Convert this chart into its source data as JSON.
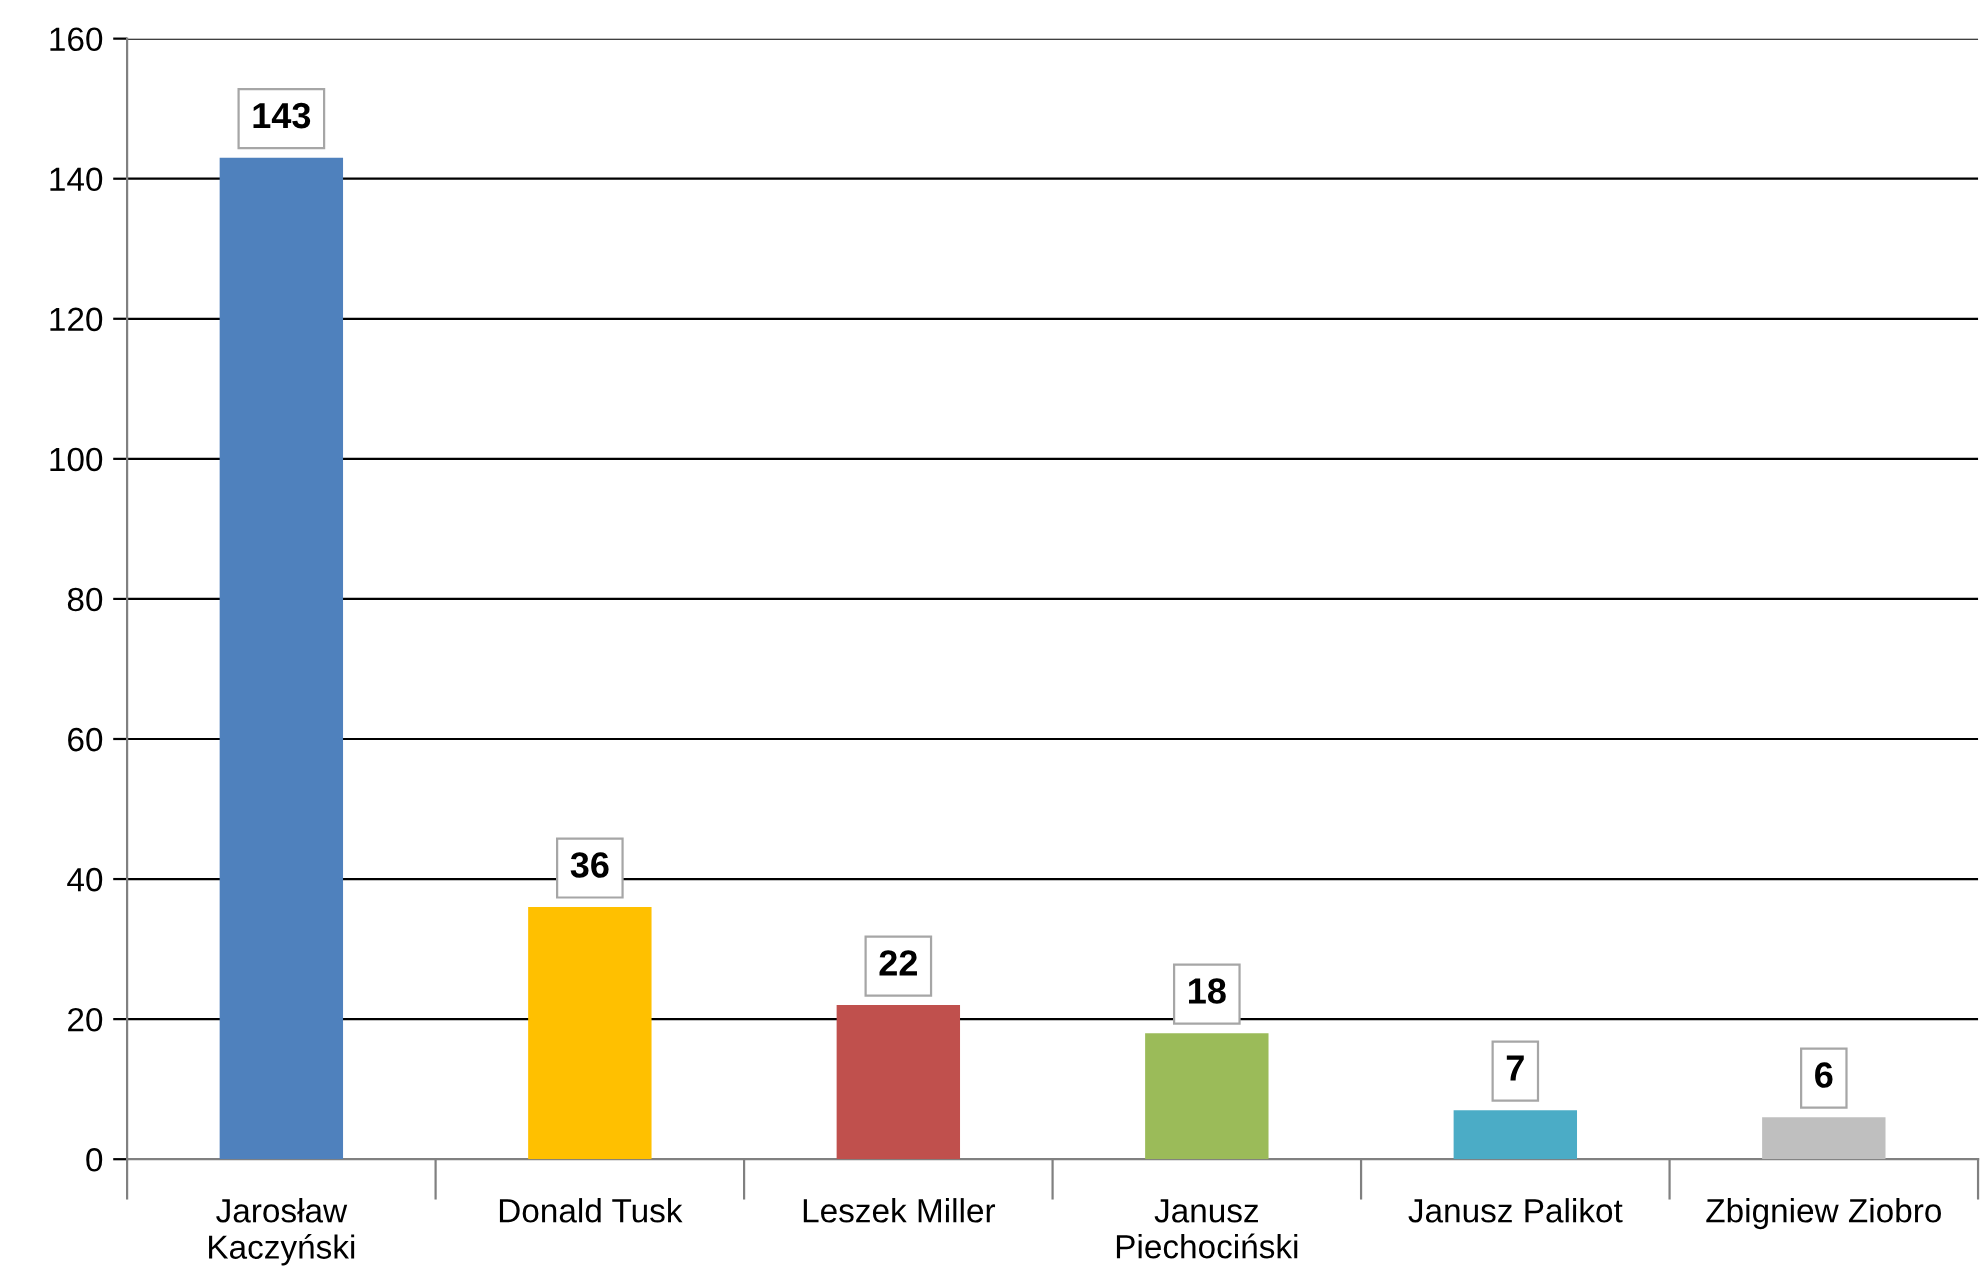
{
  "chart_data": {
    "type": "bar",
    "categories": [
      "Jarosław\nKaczyński",
      "Donald Tusk",
      "Leszek Miller",
      "Janusz\nPiechociński",
      "Janusz Palikot",
      "Zbigniew Ziobro"
    ],
    "values": [
      143,
      36,
      22,
      18,
      7,
      6
    ],
    "colors": [
      "#4f81bd",
      "#ffc000",
      "#c0504d",
      "#9bbb59",
      "#4bacc6",
      "#bfbfbf"
    ],
    "ylim": [
      0,
      160
    ],
    "yticks": [
      0,
      20,
      40,
      60,
      80,
      100,
      120,
      140,
      160
    ],
    "grid": "y",
    "data_labels": true,
    "legend": false
  }
}
